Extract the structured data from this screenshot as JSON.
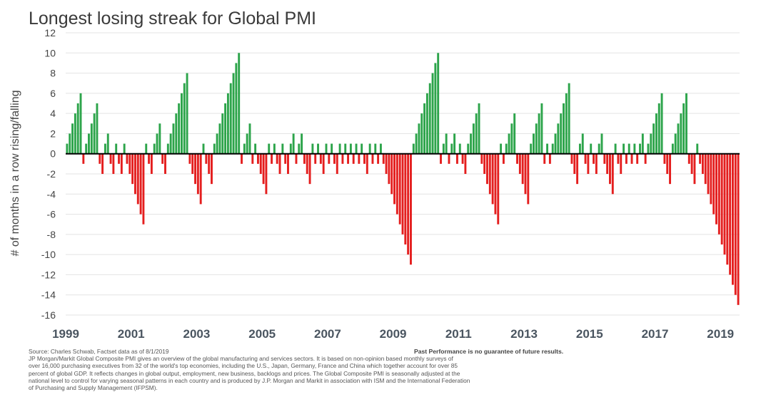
{
  "title": "Longest losing streak for Global PMI",
  "chart_data": {
    "type": "bar",
    "title": "Longest losing streak for Global PMI",
    "ylabel": "# of months in a row rising/falling",
    "xlabel": "",
    "ylim": [
      -16,
      12
    ],
    "yticks": [
      12,
      10,
      8,
      6,
      4,
      2,
      0,
      -2,
      -4,
      -6,
      -8,
      -10,
      -12,
      -14,
      -16
    ],
    "xticks": [
      "1999",
      "2001",
      "2003",
      "2005",
      "2007",
      "2009",
      "2011",
      "2013",
      "2015",
      "2017",
      "2019"
    ],
    "x_start": "1999-01",
    "frequency": "monthly",
    "grid": true,
    "colors": {
      "rising": "#2ca44a",
      "falling": "#e41e1e",
      "zero_line": "#000000",
      "grid": "#e3e3e3"
    },
    "values": [
      1,
      2,
      3,
      4,
      5,
      6,
      -1,
      1,
      2,
      3,
      4,
      5,
      -1,
      -2,
      1,
      2,
      -1,
      -2,
      1,
      -1,
      -2,
      1,
      -1,
      -2,
      -3,
      -4,
      -5,
      -6,
      -7,
      1,
      -1,
      -2,
      1,
      2,
      3,
      -1,
      -2,
      1,
      2,
      3,
      4,
      5,
      6,
      7,
      8,
      -1,
      -2,
      -3,
      -4,
      -5,
      1,
      -1,
      -2,
      -3,
      1,
      2,
      3,
      4,
      5,
      6,
      7,
      8,
      9,
      10,
      -1,
      1,
      2,
      3,
      -1,
      1,
      -1,
      -2,
      -3,
      -4,
      1,
      -1,
      1,
      -1,
      -2,
      1,
      -1,
      -2,
      1,
      2,
      -1,
      1,
      2,
      -1,
      -2,
      -3,
      1,
      -1,
      1,
      -1,
      -2,
      1,
      -1,
      1,
      -1,
      -2,
      1,
      -1,
      1,
      -1,
      1,
      -1,
      1,
      -1,
      1,
      -1,
      -2,
      1,
      -1,
      1,
      -1,
      1,
      -1,
      -2,
      -3,
      -4,
      -5,
      -6,
      -7,
      -8,
      -9,
      -10,
      -11,
      1,
      2,
      3,
      4,
      5,
      6,
      7,
      8,
      9,
      10,
      -1,
      1,
      2,
      -1,
      1,
      2,
      -1,
      1,
      -1,
      -2,
      1,
      2,
      3,
      4,
      5,
      -1,
      -2,
      -3,
      -4,
      -5,
      -6,
      -7,
      1,
      -1,
      1,
      2,
      3,
      4,
      -1,
      -2,
      -3,
      -4,
      -5,
      1,
      2,
      3,
      4,
      5,
      -1,
      1,
      -1,
      1,
      2,
      3,
      4,
      5,
      6,
      7,
      -1,
      -2,
      -3,
      1,
      2,
      -1,
      -2,
      1,
      -1,
      -2,
      1,
      2,
      -1,
      -2,
      -3,
      -4,
      1,
      -1,
      -2,
      1,
      -1,
      1,
      -1,
      1,
      -1,
      1,
      2,
      -1,
      1,
      2,
      3,
      4,
      5,
      6,
      -1,
      -2,
      -3,
      1,
      2,
      3,
      4,
      5,
      6,
      -1,
      -2,
      -3,
      1,
      -1,
      -2,
      -3,
      -4,
      -5,
      -6,
      -7,
      -8,
      -9,
      -10,
      -11,
      -12,
      -13,
      -14,
      -15
    ]
  },
  "footer": {
    "source": "Source: Charles Schwab, Factset data as of 8/1/2019",
    "disclaimer": "Past Performance is no guarantee of future results.",
    "note_lines": [
      "JP Morgan/Markit Global Composite PMI gives an overview of the global manufacturing and services sectors. It is based on non-opinion based monthly surveys of",
      " over 16,000 purchasing executives from 32 of the world's top economies, including the U.S., Japan, Germany, France and China which together account for over 85",
      "percent of global GDP. It reflects changes in global output, employment, new business, backlogs and prices. The Global Composite PMI is seasonally adjusted at the",
      " national level to control for varying seasonal patterns in each country and is produced by J.P. Morgan and Markit in association with ISM and the International Federation",
      " of Purchasing and Supply Management (IFPSM)."
    ]
  }
}
